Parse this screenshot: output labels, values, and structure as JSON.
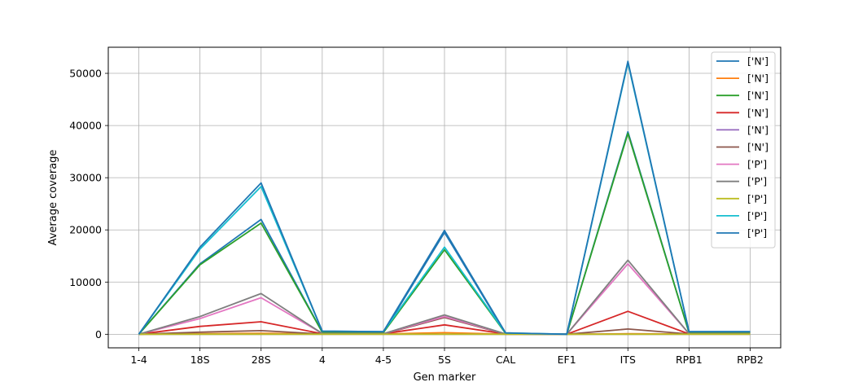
{
  "chart_data": {
    "type": "line",
    "xlabel": "Gen marker",
    "ylabel": "Average coverage",
    "categories": [
      "1-4",
      "18S",
      "28S",
      "4",
      "4-5",
      "5S",
      "CAL",
      "EF1",
      "ITS",
      "RPB1",
      "RPB2"
    ],
    "ylim": [
      -2600,
      55000
    ],
    "yticks": [
      0,
      10000,
      20000,
      30000,
      40000,
      50000
    ],
    "grid": true,
    "legend_position": "top-right",
    "series": [
      {
        "name": "['N']",
        "color": "#1f77b4",
        "values": [
          0,
          13500,
          22000,
          400,
          300,
          19500,
          150,
          0,
          38800,
          300,
          300
        ]
      },
      {
        "name": "['N']",
        "color": "#ff7f0e",
        "values": [
          0,
          100,
          200,
          50,
          50,
          300,
          20,
          0,
          100,
          50,
          50
        ]
      },
      {
        "name": "['N']",
        "color": "#2ca02c",
        "values": [
          0,
          13300,
          21300,
          400,
          300,
          16200,
          150,
          0,
          38500,
          300,
          300
        ]
      },
      {
        "name": "['N']",
        "color": "#d62728",
        "values": [
          0,
          1500,
          2400,
          100,
          80,
          1800,
          50,
          0,
          4400,
          50,
          50
        ]
      },
      {
        "name": "['N']",
        "color": "#9467bd",
        "values": [
          0,
          0,
          0,
          0,
          0,
          0,
          0,
          0,
          0,
          0,
          0
        ]
      },
      {
        "name": "['N']",
        "color": "#8c564b",
        "values": [
          0,
          400,
          700,
          50,
          50,
          3200,
          30,
          0,
          1000,
          50,
          50
        ]
      },
      {
        "name": "['P']",
        "color": "#e377c2",
        "values": [
          0,
          3000,
          7000,
          150,
          100,
          3400,
          50,
          0,
          13500,
          100,
          100
        ]
      },
      {
        "name": "['P']",
        "color": "#7f7f7f",
        "values": [
          0,
          3400,
          7800,
          150,
          100,
          3700,
          50,
          0,
          14200,
          100,
          100
        ]
      },
      {
        "name": "['P']",
        "color": "#bcbd22",
        "values": [
          0,
          0,
          0,
          0,
          0,
          0,
          0,
          0,
          0,
          0,
          0
        ]
      },
      {
        "name": "['P']",
        "color": "#17becf",
        "values": [
          0,
          16300,
          28300,
          600,
          500,
          16700,
          250,
          0,
          52000,
          500,
          500
        ]
      },
      {
        "name": "['P']",
        "color": "#1f77b4",
        "values": [
          0,
          16700,
          29000,
          600,
          500,
          19900,
          250,
          0,
          52300,
          500,
          500
        ]
      }
    ]
  }
}
